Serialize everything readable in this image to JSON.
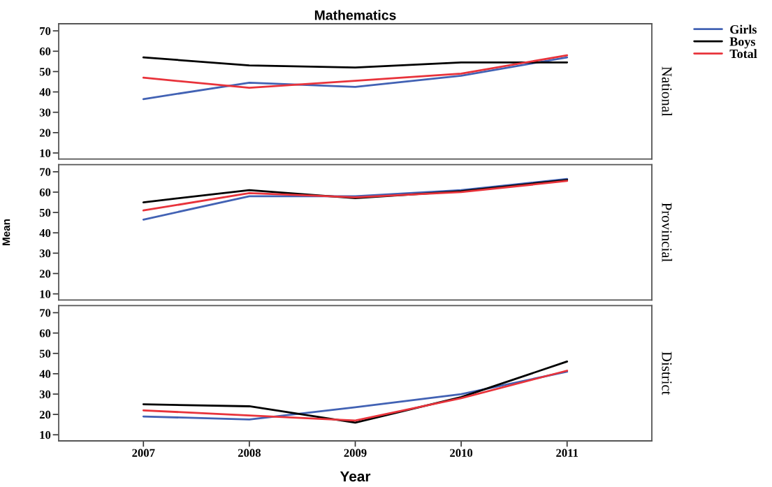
{
  "chart_data": [
    {
      "type": "line",
      "title": "Mathematics",
      "y2label": "National",
      "x": [
        2007,
        2008,
        2009,
        2010,
        2011
      ],
      "xlim": [
        2006.2,
        2011.8
      ],
      "xticks": [
        2007,
        2008,
        2009,
        2010,
        2011
      ],
      "ylim": [
        7,
        73.5
      ],
      "yticks": [
        10,
        20,
        30,
        40,
        50,
        60,
        70
      ],
      "tick_labels": "y",
      "legend": "top right",
      "series": [
        {
          "name": "Girls",
          "color": "#4262b4",
          "values": [
            36.5,
            44.5,
            42.5,
            48,
            57
          ]
        },
        {
          "name": "Boys",
          "color": "#000000",
          "values": [
            57,
            53,
            52,
            54.5,
            54.5
          ]
        },
        {
          "name": "Total",
          "color": "#e8333b",
          "values": [
            47,
            42,
            45.5,
            49,
            58
          ]
        }
      ]
    },
    {
      "type": "line",
      "ylabel": "Mean",
      "y2label": "Provincial",
      "x": [
        2007,
        2008,
        2009,
        2010,
        2011
      ],
      "xlim": [
        2006.2,
        2011.8
      ],
      "xticks": [
        2007,
        2008,
        2009,
        2010,
        2011
      ],
      "ylim": [
        7,
        73.5
      ],
      "yticks": [
        10,
        20,
        30,
        40,
        50,
        60,
        70
      ],
      "tick_labels": "y",
      "series": [
        {
          "color": "#4262b4",
          "values": [
            46.5,
            58,
            58,
            61,
            66.5
          ]
        },
        {
          "color": "#000000",
          "values": [
            55,
            61,
            57,
            60.5,
            66
          ]
        },
        {
          "color": "#e8333b",
          "values": [
            51,
            59.5,
            57.5,
            60,
            65.5
          ]
        }
      ]
    },
    {
      "type": "line",
      "xlabel": "Year",
      "y2label": "District",
      "x": [
        2007,
        2008,
        2009,
        2010,
        2011
      ],
      "xlim": [
        2006.2,
        2011.8
      ],
      "xticks": [
        2007,
        2008,
        2009,
        2010,
        2011
      ],
      "ylim": [
        7,
        73.5
      ],
      "yticks": [
        10,
        20,
        30,
        40,
        50,
        60,
        70
      ],
      "series": [
        {
          "color": "#4262b4",
          "values": [
            19,
            17.5,
            23.5,
            30,
            41
          ]
        },
        {
          "color": "#000000",
          "values": [
            25,
            24,
            16,
            28.5,
            46
          ]
        },
        {
          "color": "#e8333b",
          "values": [
            22,
            19.5,
            17,
            28,
            41.5
          ]
        }
      ]
    }
  ]
}
